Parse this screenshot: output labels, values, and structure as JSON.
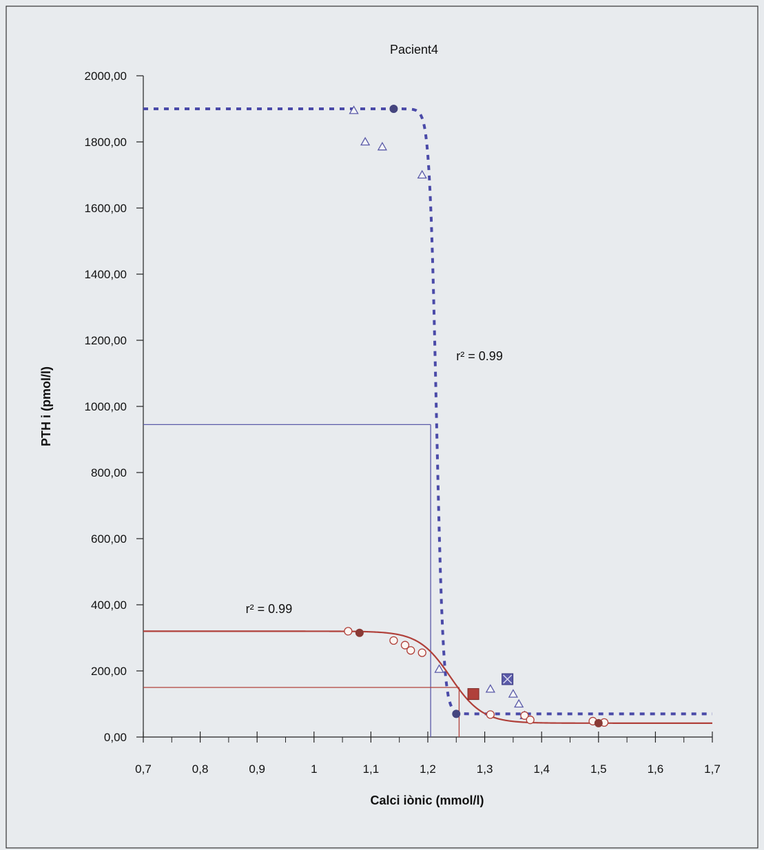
{
  "chart_data": {
    "type": "scatter",
    "title": "Pacient4",
    "xlabel": "Calci iònic (mmol/l)",
    "ylabel": "PTH i (pmol/l)",
    "xlim": [
      0.7,
      1.7
    ],
    "ylim": [
      0,
      2000
    ],
    "xticks": [
      "0,7",
      "0,8",
      "0,9",
      "1",
      "1,1",
      "1,2",
      "1,3",
      "1,4",
      "1,5",
      "1,6",
      "1,7"
    ],
    "yticks": [
      "0,00",
      "200,00",
      "400,00",
      "600,00",
      "800,00",
      "1000,00",
      "1200,00",
      "1400,00",
      "1600,00",
      "1800,00",
      "2000,00"
    ],
    "grid": false,
    "colors": {
      "red": "#b0403a",
      "blue": "#5a5aa8",
      "dark_blue": "#45457e",
      "dark_red": "#8a3a35"
    },
    "series": [
      {
        "marker": "open-triangle",
        "color": "#5a5aa8",
        "points": [
          [
            1.07,
            1895
          ],
          [
            1.09,
            1800
          ],
          [
            1.12,
            1785
          ],
          [
            1.19,
            1700
          ],
          [
            1.22,
            205
          ],
          [
            1.31,
            145
          ],
          [
            1.35,
            130
          ],
          [
            1.36,
            100
          ],
          [
            1.37,
            65
          ]
        ]
      },
      {
        "marker": "filled-circle",
        "color": "#45457e",
        "points": [
          [
            1.14,
            1900
          ],
          [
            1.25,
            70
          ]
        ]
      },
      {
        "marker": "open-circle",
        "color": "#b0403a",
        "points": [
          [
            1.06,
            320
          ],
          [
            1.14,
            292
          ],
          [
            1.16,
            278
          ],
          [
            1.17,
            262
          ],
          [
            1.19,
            255
          ],
          [
            1.31,
            68
          ],
          [
            1.37,
            65
          ],
          [
            1.38,
            52
          ],
          [
            1.49,
            48
          ],
          [
            1.51,
            44
          ]
        ]
      },
      {
        "marker": "filled-circle",
        "color": "#8a3a35",
        "points": [
          [
            1.08,
            315
          ],
          [
            1.5,
            42
          ]
        ]
      },
      {
        "marker": "square",
        "color": "#b0403a",
        "points": [
          [
            1.28,
            130
          ]
        ]
      },
      {
        "marker": "square-x",
        "color": "#5a5aa8",
        "points": [
          [
            1.34,
            175
          ]
        ]
      }
    ],
    "fit_curves": [
      {
        "style": "dashed",
        "color": "#4a4aa8",
        "min": 70,
        "max": 1900,
        "midpoint": 1.215,
        "slope": 0.006
      },
      {
        "style": "solid",
        "color": "#b0403a",
        "min": 42,
        "max": 320,
        "midpoint": 1.24,
        "slope": 0.028
      }
    ],
    "reference_lines": [
      {
        "color": "#5a5aa8",
        "x": 1.205,
        "y": 945
      },
      {
        "color": "#b0403a",
        "x": 1.255,
        "y": 150
      }
    ],
    "annotations": [
      {
        "text": "r² = 0.99",
        "x": 1.25,
        "y": 1140
      },
      {
        "text": "r² = 0.99",
        "x": 0.88,
        "y": 375
      }
    ]
  }
}
